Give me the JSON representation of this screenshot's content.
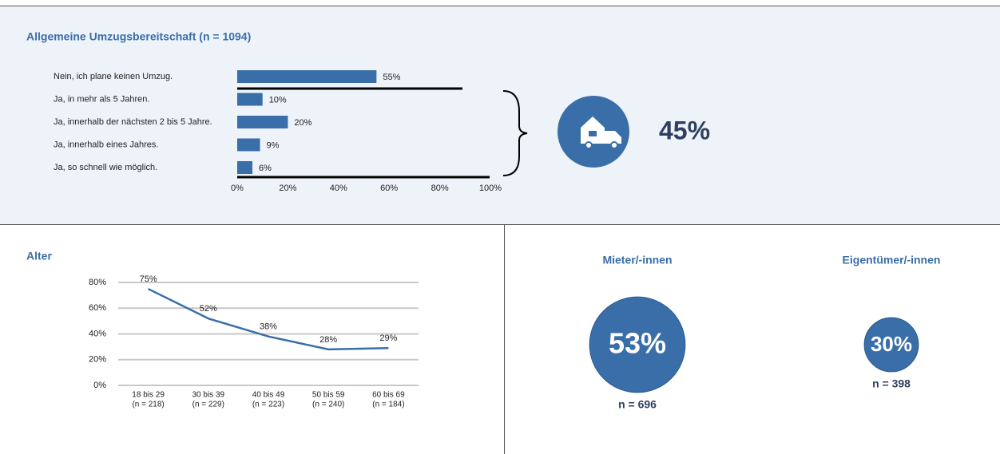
{
  "chart_data": [
    {
      "type": "hbar",
      "title": "Allgemeine Umzugsbereitschaft (n = 1094)",
      "categories": [
        "Nein, ich plane keinen Umzug.",
        "Ja, in mehr als 5 Jahren.",
        "Ja, innerhalb der nächsten 2 bis 5 Jahre.",
        "Ja, innerhalb eines Jahres.",
        "Ja, so schnell wie möglich."
      ],
      "values": [
        55,
        10,
        20,
        9,
        6
      ],
      "value_labels": [
        "55%",
        "10%",
        "20%",
        "9%",
        "6%"
      ],
      "color": "#3a6ea8",
      "xlim": [
        0,
        100
      ],
      "xticks": [
        {
          "value": 0,
          "label": "0%"
        },
        {
          "value": 20,
          "label": "20%"
        },
        {
          "value": 40,
          "label": "40%"
        },
        {
          "value": 60,
          "label": "60%"
        },
        {
          "value": 80,
          "label": "80%"
        },
        {
          "value": 100,
          "label": "100%"
        }
      ]
    },
    {
      "type": "kpi",
      "value": 45,
      "value_label": "45%",
      "color": "#3a6ea8"
    },
    {
      "type": "line",
      "title": "Alter",
      "categories": [
        "18 bis 29",
        "30 bis 39",
        "40 bis 49",
        "50 bis 59",
        "60 bis 69"
      ],
      "category_notes": [
        "(n = 218)",
        "(n = 229)",
        "(n = 223)",
        "(n = 240)",
        "(n = 184)"
      ],
      "values": [
        75,
        52,
        38,
        28,
        29
      ],
      "value_labels": [
        "75%",
        "52%",
        "38%",
        "28%",
        "29%"
      ],
      "color": "#3a6ea8",
      "ylim": [
        0,
        80
      ],
      "grid": true,
      "yticks": [
        {
          "value": 0,
          "label": "0%"
        },
        {
          "value": 20,
          "label": "20%"
        },
        {
          "value": 40,
          "label": "40%"
        },
        {
          "value": 60,
          "label": "60%"
        },
        {
          "value": 80,
          "label": "80%"
        }
      ]
    },
    {
      "type": "bubble",
      "categories": [
        "Mieter/-innen",
        "Eigentümer/-innen"
      ],
      "values": [
        53,
        30
      ],
      "value_labels": [
        "53%",
        "30%"
      ],
      "notes": [
        "n = 696",
        "n = 398"
      ],
      "color": "#3a6ea8"
    }
  ]
}
